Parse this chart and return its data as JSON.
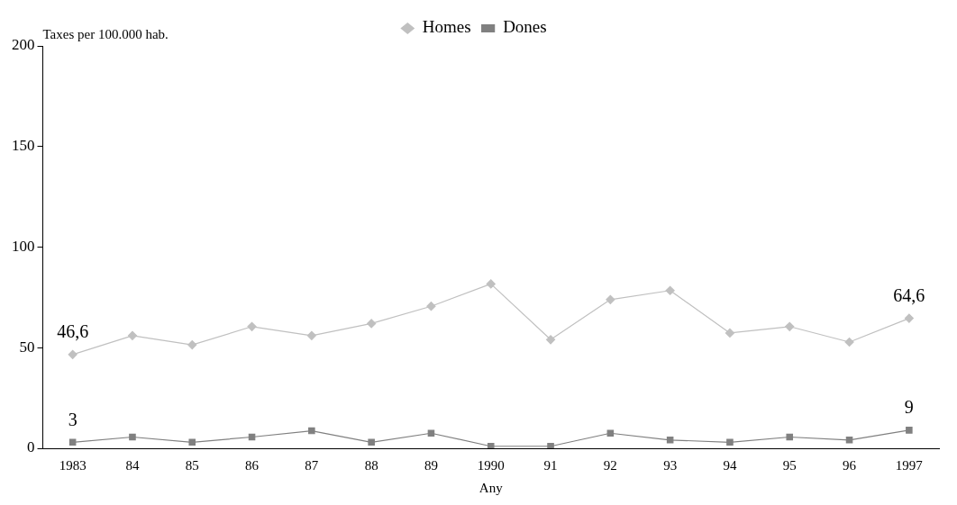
{
  "chart_data": {
    "type": "line",
    "xlabel": "Any",
    "ylabel": "Taxes per 100.000 hab.",
    "categories": [
      "1983",
      "84",
      "85",
      "86",
      "87",
      "88",
      "89",
      "1990",
      "91",
      "92",
      "93",
      "94",
      "95",
      "96",
      "1997"
    ],
    "series": [
      {
        "name": "Homes",
        "color": "#c0c0c0",
        "marker": "diamond",
        "values": [
          46.6,
          56,
          51.4,
          60.5,
          56,
          62,
          70.6,
          81.7,
          54,
          73.9,
          78.4,
          57.3,
          60.5,
          52.8,
          64.6
        ],
        "value_labels": [
          "46,6",
          null,
          null,
          null,
          null,
          null,
          null,
          null,
          null,
          null,
          null,
          null,
          null,
          null,
          "64,6"
        ]
      },
      {
        "name": "Dones",
        "color": "#808080",
        "marker": "square",
        "values": [
          3,
          5.6,
          3,
          5.6,
          8.7,
          3,
          7.5,
          1,
          1,
          7.5,
          4.1,
          3,
          5.6,
          4.1,
          9
        ],
        "value_labels": [
          "3",
          null,
          null,
          null,
          null,
          null,
          null,
          null,
          null,
          null,
          null,
          null,
          null,
          null,
          "9"
        ]
      }
    ],
    "ylim": [
      0,
      200
    ],
    "yticks": [
      0,
      50,
      100,
      150,
      200
    ],
    "grid": false,
    "legend": "top right"
  }
}
